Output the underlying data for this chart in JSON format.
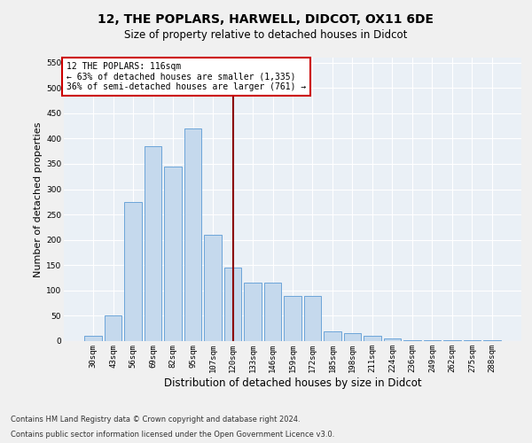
{
  "title1": "12, THE POPLARS, HARWELL, DIDCOT, OX11 6DE",
  "title2": "Size of property relative to detached houses in Didcot",
  "xlabel": "Distribution of detached houses by size in Didcot",
  "ylabel": "Number of detached properties",
  "footnote1": "Contains HM Land Registry data © Crown copyright and database right 2024.",
  "footnote2": "Contains public sector information licensed under the Open Government Licence v3.0.",
  "bar_labels": [
    "30sqm",
    "43sqm",
    "56sqm",
    "69sqm",
    "82sqm",
    "95sqm",
    "107sqm",
    "120sqm",
    "133sqm",
    "146sqm",
    "159sqm",
    "172sqm",
    "185sqm",
    "198sqm",
    "211sqm",
    "224sqm",
    "236sqm",
    "249sqm",
    "262sqm",
    "275sqm",
    "288sqm"
  ],
  "bar_values": [
    10,
    50,
    275,
    385,
    345,
    420,
    210,
    145,
    115,
    115,
    90,
    90,
    20,
    15,
    10,
    5,
    2,
    2,
    1,
    1,
    1
  ],
  "bar_color": "#c5d9ed",
  "bar_edgecolor": "#5b9bd5",
  "vline_color": "#8b0000",
  "vline_x_index": 7.0,
  "annotation_line1": "12 THE POPLARS: 116sqm",
  "annotation_line2": "← 63% of detached houses are smaller (1,335)",
  "annotation_line3": "36% of semi-detached houses are larger (761) →",
  "annotation_box_edgecolor": "#cc0000",
  "ylim_max": 560,
  "yticks": [
    0,
    50,
    100,
    150,
    200,
    250,
    300,
    350,
    400,
    450,
    500,
    550
  ],
  "plot_bg_color": "#eaf0f6",
  "fig_bg_color": "#f0f0f0",
  "title1_fontsize": 10,
  "title2_fontsize": 8.5,
  "tick_fontsize": 6.5,
  "ylabel_fontsize": 8,
  "xlabel_fontsize": 8.5,
  "annotation_fontsize": 7,
  "footnote_fontsize": 6
}
